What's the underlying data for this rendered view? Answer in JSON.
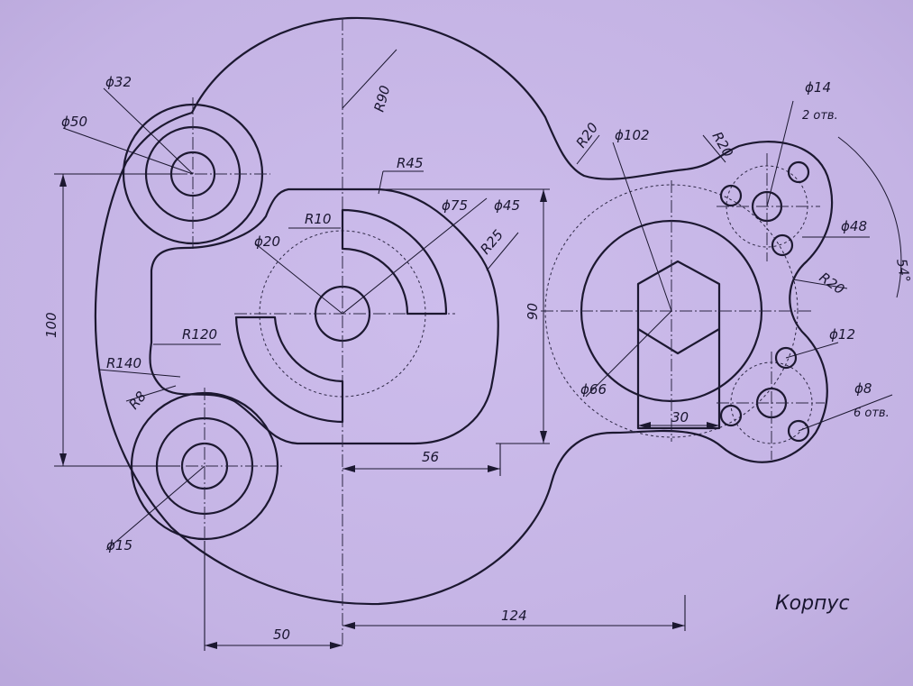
{
  "drawing": {
    "title": "Корпус",
    "dimensions": {
      "d32": "ϕ32",
      "d50": "ϕ50",
      "r90": "R90",
      "r45": "R45",
      "r10": "R10",
      "d75": "ϕ75",
      "d45": "ϕ45",
      "r25": "R25",
      "d20": "ϕ20",
      "r120": "R120",
      "r140": "R140",
      "r8": "R8",
      "d15": "ϕ15",
      "l100": "100",
      "l90": "90",
      "l56": "56",
      "l50": "50",
      "l124": "124",
      "r20_a": "R20",
      "r20_b": "R20",
      "r20_c": "R20",
      "d102": "ϕ102",
      "d66": "ϕ66",
      "l30": "30",
      "d14": "ϕ14",
      "d14_count": "2 отв.",
      "d48": "ϕ48",
      "a54": "54°",
      "d12": "ϕ12",
      "d8": "ϕ8",
      "d8_count": "6 отв."
    }
  },
  "colors": {
    "paper": "#c6b6e6",
    "ink": "#1c1830"
  }
}
